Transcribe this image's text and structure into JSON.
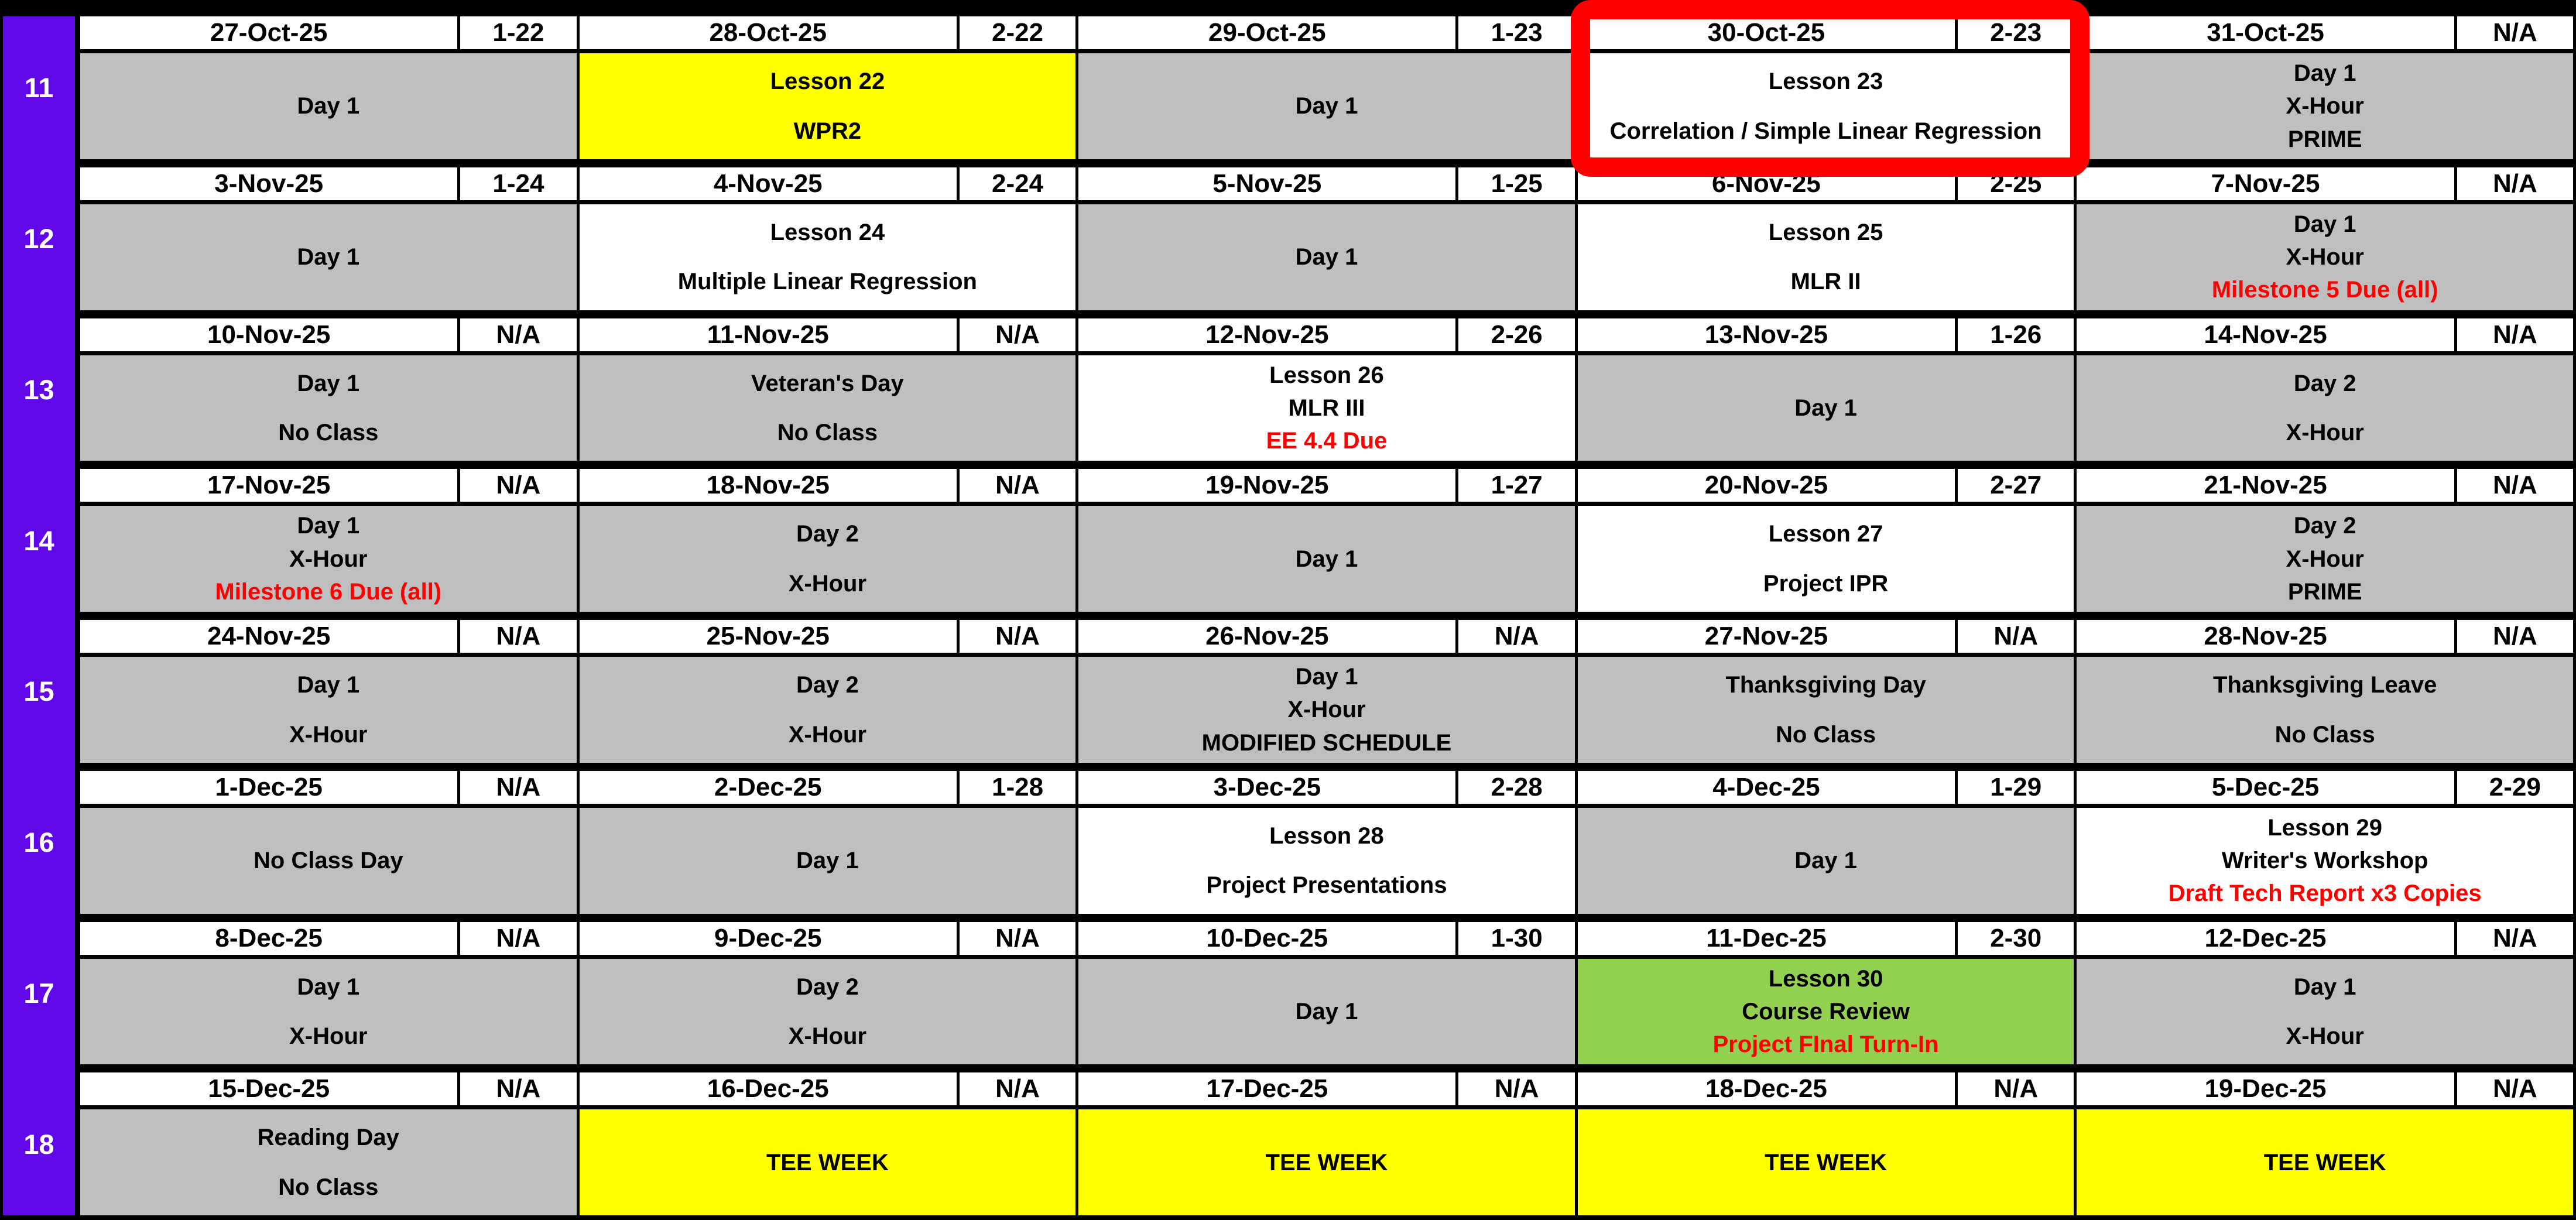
{
  "colors": {
    "cell_gray": "#BFBFBF",
    "cell_white": "#FFFFFF",
    "cell_yellow": "#FFFF00",
    "cell_green": "#92D050",
    "week_bar_purple": "#6008E8",
    "red_text": "#FF0000",
    "highlight_red": "#FE0000",
    "grid_black": "#000000",
    "week_number_text": "#FFFFFF"
  },
  "highlight": {
    "highlighted_date": "30-Oct-25",
    "highlighted_lesson": "Lesson 23"
  },
  "weeks": [
    {
      "week": "11",
      "days": [
        {
          "date": "27-Oct-25",
          "code": "1-22",
          "bg": "gray",
          "lines": [
            "Day 1"
          ]
        },
        {
          "date": "28-Oct-25",
          "code": "2-22",
          "bg": "yellow",
          "lines": [
            "Lesson 22",
            "WPR2"
          ]
        },
        {
          "date": "29-Oct-25",
          "code": "1-23",
          "bg": "gray",
          "lines": [
            "Day 1"
          ]
        },
        {
          "date": "30-Oct-25",
          "code": "2-23",
          "bg": "white",
          "lines": [
            "Lesson 23",
            "Correlation / Simple Linear Regression"
          ]
        },
        {
          "date": "31-Oct-25",
          "code": "N/A",
          "bg": "gray",
          "lines": [
            "Day 1",
            "X-Hour",
            "PRIME"
          ]
        }
      ]
    },
    {
      "week": "12",
      "days": [
        {
          "date": "3-Nov-25",
          "code": "1-24",
          "bg": "gray",
          "lines": [
            "Day 1"
          ]
        },
        {
          "date": "4-Nov-25",
          "code": "2-24",
          "bg": "white",
          "lines": [
            "Lesson 24",
            "Multiple Linear Regression"
          ]
        },
        {
          "date": "5-Nov-25",
          "code": "1-25",
          "bg": "gray",
          "lines": [
            "Day 1"
          ]
        },
        {
          "date": "6-Nov-25",
          "code": "2-25",
          "bg": "white",
          "lines": [
            "Lesson 25",
            "MLR II"
          ]
        },
        {
          "date": "7-Nov-25",
          "code": "N/A",
          "bg": "gray",
          "lines": [
            "Day 1",
            "X-Hour",
            {
              "text": "Milestone 5 Due (all)",
              "color": "red"
            }
          ]
        }
      ]
    },
    {
      "week": "13",
      "days": [
        {
          "date": "10-Nov-25",
          "code": "N/A",
          "bg": "gray",
          "lines": [
            "Day 1",
            "No Class"
          ]
        },
        {
          "date": "11-Nov-25",
          "code": "N/A",
          "bg": "gray",
          "lines": [
            "Veteran's Day",
            "No Class"
          ]
        },
        {
          "date": "12-Nov-25",
          "code": "2-26",
          "bg": "white",
          "lines": [
            "Lesson 26",
            "MLR III",
            {
              "text": "EE 4.4 Due",
              "color": "red"
            }
          ]
        },
        {
          "date": "13-Nov-25",
          "code": "1-26",
          "bg": "gray",
          "lines": [
            "Day 1"
          ]
        },
        {
          "date": "14-Nov-25",
          "code": "N/A",
          "bg": "gray",
          "lines": [
            "Day 2",
            "X-Hour"
          ]
        }
      ]
    },
    {
      "week": "14",
      "days": [
        {
          "date": "17-Nov-25",
          "code": "N/A",
          "bg": "gray",
          "lines": [
            "Day 1",
            "X-Hour",
            {
              "text": "Milestone 6 Due (all)",
              "color": "red"
            }
          ]
        },
        {
          "date": "18-Nov-25",
          "code": "N/A",
          "bg": "gray",
          "lines": [
            "Day 2",
            "X-Hour"
          ]
        },
        {
          "date": "19-Nov-25",
          "code": "1-27",
          "bg": "gray",
          "lines": [
            "Day 1"
          ]
        },
        {
          "date": "20-Nov-25",
          "code": "2-27",
          "bg": "white",
          "lines": [
            "Lesson 27",
            "Project IPR"
          ]
        },
        {
          "date": "21-Nov-25",
          "code": "N/A",
          "bg": "gray",
          "lines": [
            "Day 2",
            "X-Hour",
            "PRIME"
          ]
        }
      ]
    },
    {
      "week": "15",
      "days": [
        {
          "date": "24-Nov-25",
          "code": "N/A",
          "bg": "gray",
          "lines": [
            "Day 1",
            "X-Hour"
          ]
        },
        {
          "date": "25-Nov-25",
          "code": "N/A",
          "bg": "gray",
          "lines": [
            "Day 2",
            "X-Hour"
          ]
        },
        {
          "date": "26-Nov-25",
          "code": "N/A",
          "bg": "gray",
          "lines": [
            "Day 1",
            "X-Hour",
            "MODIFIED SCHEDULE"
          ]
        },
        {
          "date": "27-Nov-25",
          "code": "N/A",
          "bg": "gray",
          "lines": [
            "Thanksgiving Day",
            "No Class"
          ]
        },
        {
          "date": "28-Nov-25",
          "code": "N/A",
          "bg": "gray",
          "lines": [
            "Thanksgiving Leave",
            "No Class"
          ]
        }
      ]
    },
    {
      "week": "16",
      "days": [
        {
          "date": "1-Dec-25",
          "code": "N/A",
          "bg": "gray",
          "lines": [
            "No Class Day"
          ]
        },
        {
          "date": "2-Dec-25",
          "code": "1-28",
          "bg": "gray",
          "lines": [
            "Day 1"
          ]
        },
        {
          "date": "3-Dec-25",
          "code": "2-28",
          "bg": "white",
          "lines": [
            "Lesson 28",
            "Project Presentations"
          ]
        },
        {
          "date": "4-Dec-25",
          "code": "1-29",
          "bg": "gray",
          "lines": [
            "Day 1"
          ]
        },
        {
          "date": "5-Dec-25",
          "code": "2-29",
          "bg": "white",
          "lines": [
            "Lesson 29",
            "Writer's Workshop",
            {
              "text": "Draft Tech Report x3 Copies",
              "color": "red"
            }
          ]
        }
      ]
    },
    {
      "week": "17",
      "days": [
        {
          "date": "8-Dec-25",
          "code": "N/A",
          "bg": "gray",
          "lines": [
            "Day 1",
            "X-Hour"
          ]
        },
        {
          "date": "9-Dec-25",
          "code": "N/A",
          "bg": "gray",
          "lines": [
            "Day 2",
            "X-Hour"
          ]
        },
        {
          "date": "10-Dec-25",
          "code": "1-30",
          "bg": "gray",
          "lines": [
            "Day 1"
          ]
        },
        {
          "date": "11-Dec-25",
          "code": "2-30",
          "bg": "green",
          "lines": [
            "Lesson 30",
            "Course Review",
            {
              "text": "Project FInal Turn-In",
              "color": "red"
            }
          ]
        },
        {
          "date": "12-Dec-25",
          "code": "N/A",
          "bg": "gray",
          "lines": [
            "Day 1",
            "X-Hour"
          ]
        }
      ]
    },
    {
      "week": "18",
      "days": [
        {
          "date": "15-Dec-25",
          "code": "N/A",
          "bg": "gray",
          "lines": [
            "Reading Day",
            "No Class"
          ]
        },
        {
          "date": "16-Dec-25",
          "code": "N/A",
          "bg": "yellow",
          "lines": [
            "TEE WEEK"
          ]
        },
        {
          "date": "17-Dec-25",
          "code": "N/A",
          "bg": "yellow",
          "lines": [
            "TEE WEEK"
          ]
        },
        {
          "date": "18-Dec-25",
          "code": "N/A",
          "bg": "yellow",
          "lines": [
            "TEE WEEK"
          ]
        },
        {
          "date": "19-Dec-25",
          "code": "N/A",
          "bg": "yellow",
          "lines": [
            "TEE WEEK"
          ]
        }
      ]
    }
  ]
}
